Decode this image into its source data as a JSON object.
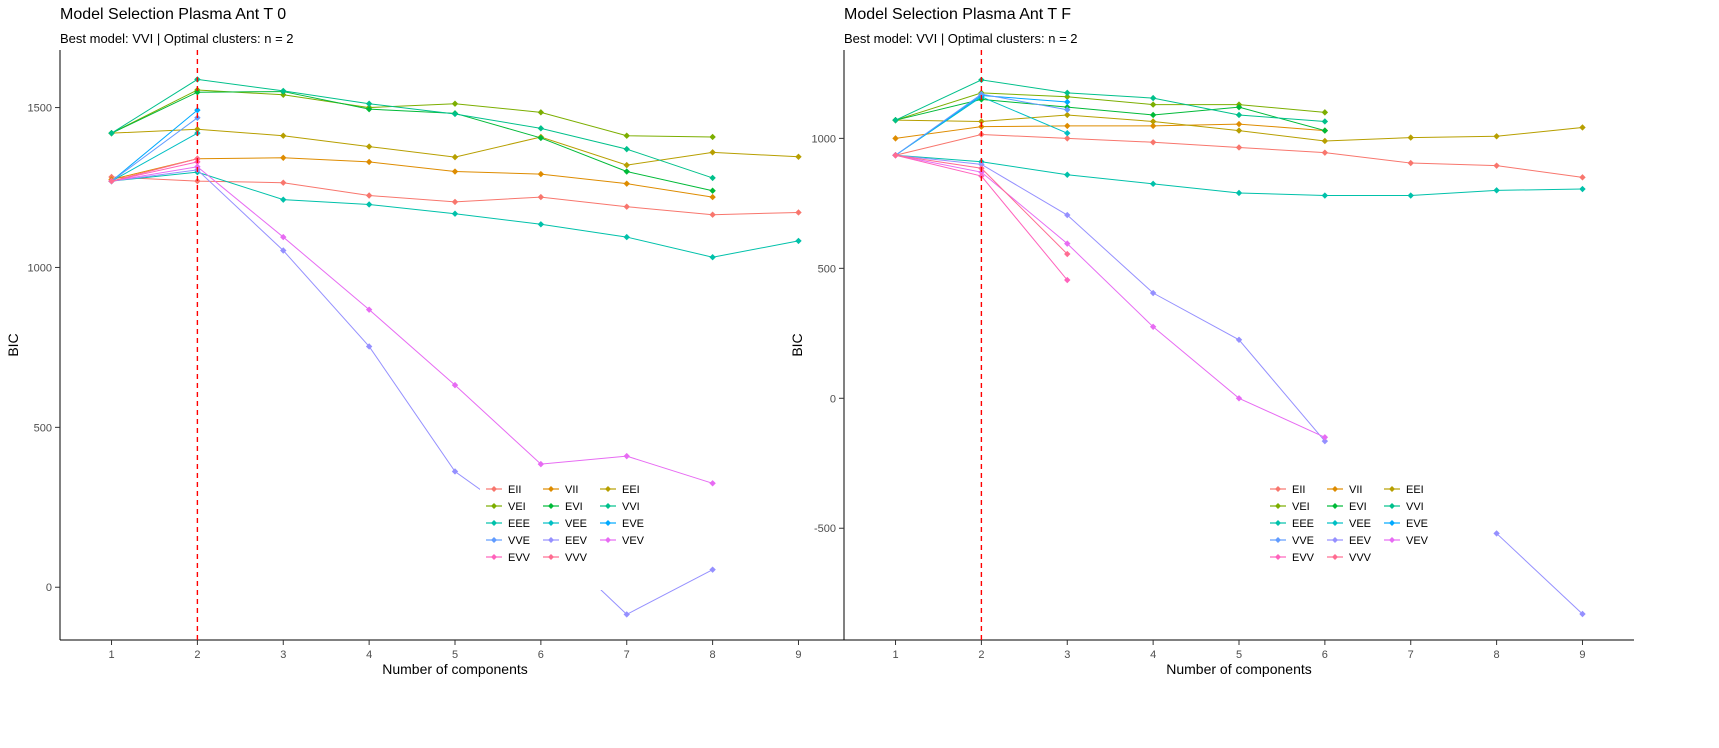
{
  "chart_data": [
    {
      "type": "line",
      "title": "Model Selection Plasma Ant T 0",
      "subtitle": "Best model: VVI | Optimal clusters: n = 2",
      "xlabel": "Number of components",
      "ylabel": "BIC",
      "x": [
        1,
        2,
        3,
        4,
        5,
        6,
        7,
        8,
        9
      ],
      "xlim": [
        0.4,
        9.6
      ],
      "ylim": [
        -165,
        1680
      ],
      "yticks": [
        0,
        500,
        1000,
        1500
      ],
      "optimal_x": 2,
      "grid": false,
      "legend_position": "bottom-right",
      "series": [
        {
          "name": "EII",
          "color": "#F8766D",
          "values": [
            1283,
            1270,
            1265,
            1225,
            1205,
            1220,
            1190,
            1165,
            1172
          ]
        },
        {
          "name": "VII",
          "color": "#DE8C00",
          "values": [
            1275,
            1340,
            1343,
            1330,
            1300,
            1292,
            1262,
            1220,
            null
          ]
        },
        {
          "name": "EEI",
          "color": "#B79F00",
          "values": [
            1420,
            1432,
            1412,
            1378,
            1345,
            1408,
            1320,
            1360,
            1346
          ]
        },
        {
          "name": "VEI",
          "color": "#7CAE00",
          "values": [
            1420,
            1555,
            1540,
            1500,
            1512,
            1485,
            1412,
            1408,
            null
          ]
        },
        {
          "name": "EVI",
          "color": "#00BA38",
          "values": [
            1420,
            1548,
            1550,
            1495,
            1482,
            1405,
            1300,
            1240,
            null
          ]
        },
        {
          "name": "VVI",
          "color": "#00C08B",
          "values": [
            1420,
            1588,
            1552,
            1512,
            1480,
            1435,
            1370,
            1280,
            null
          ]
        },
        {
          "name": "EEE",
          "color": "#00C1AA",
          "values": [
            1270,
            1298,
            1212,
            1197,
            1168,
            1135,
            1095,
            1032,
            1083
          ]
        },
        {
          "name": "VEE",
          "color": "#00BFC4",
          "values": [
            1270,
            1420,
            null,
            null,
            null,
            null,
            null,
            null,
            null
          ]
        },
        {
          "name": "EVE",
          "color": "#00A9FF",
          "values": [
            1270,
            1492,
            null,
            null,
            null,
            null,
            null,
            null,
            null
          ]
        },
        {
          "name": "VVE",
          "color": "#619CFF",
          "values": [
            1270,
            1468,
            null,
            null,
            null,
            null,
            null,
            null,
            null
          ]
        },
        {
          "name": "EEV",
          "color": "#9590FF",
          "values": [
            1270,
            1305,
            1053,
            753,
            362,
            170,
            -85,
            55,
            null
          ]
        },
        {
          "name": "VEV",
          "color": "#E76BF3",
          "values": [
            1270,
            1315,
            1095,
            868,
            632,
            385,
            410,
            325,
            null
          ]
        },
        {
          "name": "EVV",
          "color": "#FF62BC",
          "values": [
            1270,
            1330,
            null,
            null,
            null,
            null,
            null,
            null,
            null
          ]
        },
        {
          "name": "VVV",
          "color": "#FF6C91",
          "values": [
            1270,
            1340,
            null,
            null,
            null,
            null,
            null,
            null,
            null
          ]
        }
      ]
    },
    {
      "type": "line",
      "title": "Model Selection Plasma Ant T F",
      "subtitle": "Best model: VVI | Optimal clusters: n = 2",
      "xlabel": "Number of components",
      "ylabel": "BIC",
      "x": [
        1,
        2,
        3,
        4,
        5,
        6,
        7,
        8,
        9
      ],
      "xlim": [
        0.4,
        9.6
      ],
      "ylim": [
        -930,
        1340
      ],
      "yticks": [
        -500,
        0,
        500,
        1000
      ],
      "optimal_x": 2,
      "grid": false,
      "legend_position": "bottom-right",
      "series": [
        {
          "name": "EII",
          "color": "#F8766D",
          "values": [
            935,
            1015,
            1000,
            985,
            965,
            945,
            905,
            895,
            850
          ]
        },
        {
          "name": "VII",
          "color": "#DE8C00",
          "values": [
            1000,
            1045,
            1048,
            1048,
            1055,
            1030,
            null,
            null,
            null
          ]
        },
        {
          "name": "EEI",
          "color": "#B79F00",
          "values": [
            1070,
            1065,
            1090,
            1065,
            1030,
            990,
            1003,
            1008,
            1042
          ]
        },
        {
          "name": "VEI",
          "color": "#7CAE00",
          "values": [
            1070,
            1175,
            1160,
            1130,
            1130,
            1100,
            null,
            null,
            null
          ]
        },
        {
          "name": "EVI",
          "color": "#00BA38",
          "values": [
            1070,
            1150,
            1120,
            1090,
            1120,
            1030,
            null,
            null,
            null
          ]
        },
        {
          "name": "VVI",
          "color": "#00C08B",
          "values": [
            1070,
            1225,
            1175,
            1155,
            1090,
            1065,
            null,
            null,
            null
          ]
        },
        {
          "name": "EEE",
          "color": "#00C1AA",
          "values": [
            935,
            910,
            860,
            825,
            790,
            780,
            780,
            800,
            805
          ]
        },
        {
          "name": "VEE",
          "color": "#00BFC4",
          "values": [
            935,
            1160,
            1020,
            null,
            null,
            null,
            null,
            null,
            null
          ]
        },
        {
          "name": "EVE",
          "color": "#00A9FF",
          "values": [
            935,
            1165,
            1140,
            null,
            null,
            null,
            null,
            null,
            null
          ]
        },
        {
          "name": "VVE",
          "color": "#619CFF",
          "values": [
            935,
            1170,
            1110,
            null,
            null,
            null,
            null,
            null,
            null
          ]
        },
        {
          "name": "EEV",
          "color": "#9590FF",
          "values": [
            935,
            900,
            705,
            405,
            225,
            -165,
            null,
            -520,
            -830
          ]
        },
        {
          "name": "VEV",
          "color": "#E76BF3",
          "values": [
            935,
            870,
            595,
            275,
            0,
            -150,
            null,
            null,
            null
          ]
        },
        {
          "name": "EVV",
          "color": "#FF62BC",
          "values": [
            935,
            855,
            455,
            null,
            null,
            null,
            null,
            null,
            null
          ]
        },
        {
          "name": "VVV",
          "color": "#FF6C91",
          "values": [
            935,
            885,
            555,
            null,
            null,
            null,
            null,
            null,
            null
          ]
        }
      ]
    }
  ]
}
